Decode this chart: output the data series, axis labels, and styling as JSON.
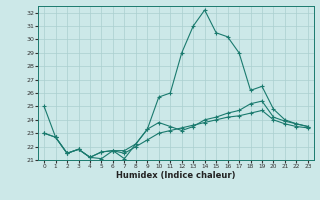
{
  "xlabel": "Humidex (Indice chaleur)",
  "xlim": [
    -0.5,
    23.5
  ],
  "ylim": [
    21,
    32.5
  ],
  "yticks": [
    21,
    22,
    23,
    24,
    25,
    26,
    27,
    28,
    29,
    30,
    31,
    32
  ],
  "xticks": [
    0,
    1,
    2,
    3,
    4,
    5,
    6,
    7,
    8,
    9,
    10,
    11,
    12,
    13,
    14,
    15,
    16,
    17,
    18,
    19,
    20,
    21,
    22,
    23
  ],
  "bg_color": "#cce8e8",
  "line_color": "#1a7a6e",
  "grid_color": "#aacfcf",
  "line1_y": [
    25.0,
    22.7,
    21.5,
    21.8,
    21.2,
    21.1,
    21.7,
    21.1,
    22.2,
    23.3,
    25.7,
    26.0,
    29.0,
    31.0,
    32.2,
    30.5,
    30.2,
    29.0,
    26.2,
    26.5,
    24.8,
    24.0,
    23.7,
    23.5
  ],
  "line2_y": [
    23.0,
    22.7,
    21.5,
    21.8,
    21.2,
    21.6,
    21.7,
    21.7,
    22.2,
    23.3,
    23.8,
    23.5,
    23.2,
    23.5,
    24.0,
    24.2,
    24.5,
    24.7,
    25.2,
    25.4,
    24.2,
    23.9,
    23.7,
    23.5
  ],
  "line3_y": [
    23.0,
    22.7,
    21.5,
    21.8,
    21.2,
    21.6,
    21.7,
    21.5,
    22.0,
    22.5,
    23.0,
    23.2,
    23.4,
    23.6,
    23.8,
    24.0,
    24.2,
    24.3,
    24.5,
    24.7,
    24.0,
    23.7,
    23.5,
    23.4
  ]
}
